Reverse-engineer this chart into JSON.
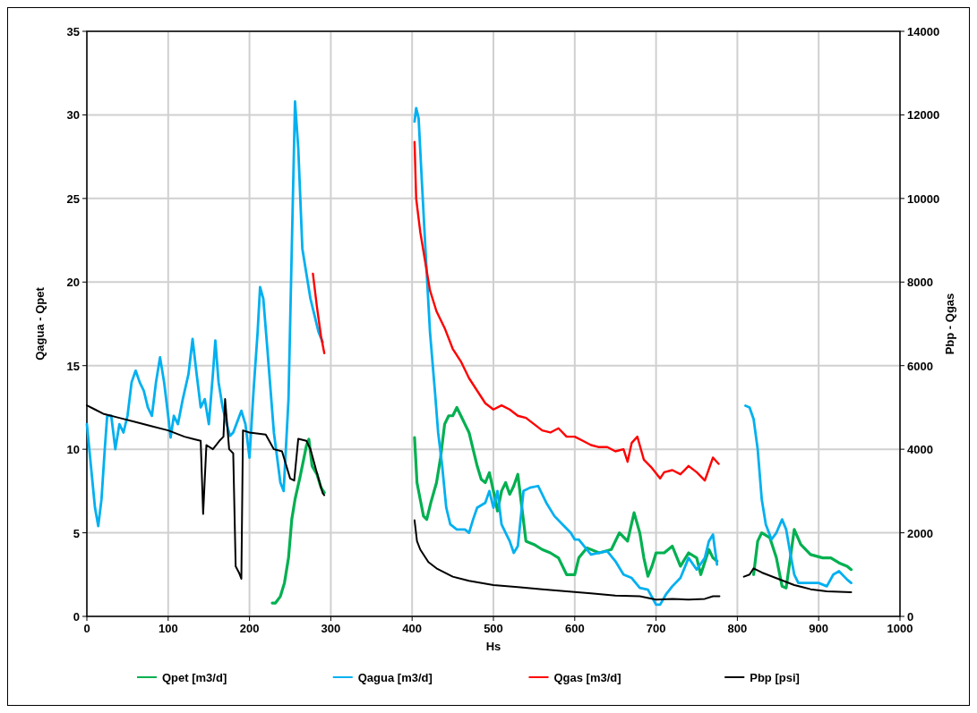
{
  "chart_data": {
    "type": "line",
    "xlabel": "Hs",
    "ylabel": "Qagua - Qpet",
    "y2label": "Pbp - Qgas",
    "xlim": [
      0,
      1000
    ],
    "xticks": [
      0,
      100,
      200,
      300,
      400,
      500,
      600,
      700,
      800,
      900,
      1000
    ],
    "ylim": [
      0,
      35
    ],
    "yticks": [
      0,
      5,
      10,
      15,
      20,
      25,
      30,
      35
    ],
    "y2lim": [
      0,
      14000
    ],
    "y2ticks": [
      0,
      2000,
      4000,
      6000,
      8000,
      10000,
      12000,
      14000
    ],
    "grid": true,
    "legend": "bottom",
    "line_style": "solid",
    "series": [
      {
        "name": "Qpet [m3/d]",
        "color": "#00b050",
        "x": [
          228,
          232,
          238,
          243,
          248,
          252,
          256,
          262,
          270,
          273,
          277,
          283,
          288,
          292,
          300,
          403,
          406,
          410,
          414,
          418,
          423,
          430,
          435,
          440,
          445,
          450,
          455,
          460,
          465,
          470,
          475,
          480,
          485,
          490,
          495,
          500,
          505,
          510,
          515,
          520,
          525,
          530,
          535,
          540,
          550,
          560,
          570,
          580,
          590,
          600,
          605,
          615,
          630,
          645,
          655,
          665,
          673,
          680,
          685,
          690,
          695,
          700,
          710,
          720,
          730,
          740,
          750,
          755,
          765,
          770,
          775,
          790,
          820,
          825,
          830,
          840,
          848,
          855,
          860,
          870,
          878,
          890,
          905,
          915,
          925,
          935,
          940
        ],
        "values": [
          0.8,
          0.8,
          1.2,
          2,
          3.5,
          5.8,
          7,
          8.3,
          10.2,
          10.6,
          9,
          8.5,
          7.7,
          7.4,
          null,
          10.7,
          8,
          7,
          6,
          5.8,
          6.8,
          8,
          9.5,
          11.5,
          12,
          12,
          12.5,
          12,
          11.5,
          11,
          10,
          9,
          8.2,
          8,
          8.6,
          7.5,
          6.3,
          7.5,
          8,
          7.3,
          7.8,
          8.5,
          6.5,
          4.5,
          4.3,
          4,
          3.8,
          3.5,
          2.5,
          2.5,
          3.5,
          4.1,
          3.8,
          4,
          5,
          4.5,
          6.2,
          5,
          3.5,
          2.4,
          3,
          3.8,
          3.8,
          4.2,
          3,
          3.8,
          3.5,
          2.5,
          4,
          3.5,
          3.3,
          null,
          2.5,
          4.5,
          5,
          4.7,
          3.5,
          1.8,
          1.7,
          5.2,
          4.3,
          3.7,
          3.5,
          3.5,
          3.2,
          3,
          2.8
        ]
      },
      {
        "name": "Qagua [m3/d]",
        "color": "#00b0f0",
        "x": [
          0,
          5,
          10,
          14,
          18,
          22,
          25,
          30,
          35,
          40,
          45,
          50,
          55,
          60,
          65,
          70,
          75,
          80,
          85,
          90,
          95,
          100,
          103,
          107,
          112,
          118,
          125,
          130,
          135,
          140,
          145,
          150,
          155,
          158,
          162,
          167,
          172,
          176,
          180,
          190,
          195,
          200,
          205,
          210,
          213,
          217,
          222,
          230,
          238,
          242,
          248,
          252,
          256,
          260,
          265,
          270,
          275,
          280,
          285,
          290,
          300,
          403,
          405,
          408,
          412,
          418,
          422,
          428,
          432,
          437,
          442,
          447,
          455,
          465,
          470,
          475,
          480,
          490,
          495,
          500,
          505,
          510,
          515,
          520,
          525,
          530,
          537,
          545,
          555,
          565,
          575,
          585,
          595,
          600,
          605,
          615,
          620,
          630,
          640,
          650,
          660,
          670,
          680,
          690,
          700,
          705,
          712,
          720,
          730,
          740,
          750,
          760,
          765,
          770,
          775,
          790,
          810,
          815,
          820,
          825,
          830,
          835,
          842,
          848,
          855,
          860,
          865,
          870,
          875,
          885,
          900,
          910,
          918,
          925,
          935,
          940
        ],
        "values": [
          11.5,
          9,
          6.5,
          5.4,
          7,
          10,
          12,
          12,
          10,
          11.5,
          11,
          12,
          14,
          14.7,
          14,
          13.5,
          12.5,
          12,
          14,
          15.5,
          14,
          12,
          10.7,
          12,
          11.5,
          13,
          14.5,
          16.6,
          14.5,
          12.5,
          13,
          11.5,
          14.5,
          16.5,
          14,
          12.5,
          11.5,
          10.8,
          11,
          12.3,
          11.5,
          9.5,
          13.5,
          17,
          19.7,
          19,
          16,
          11,
          8,
          7.5,
          13,
          22,
          30.8,
          28,
          22,
          20.5,
          19,
          18,
          17,
          16.4,
          null,
          29.6,
          30.4,
          29.8,
          26,
          20.5,
          17,
          13.5,
          11,
          9,
          6.5,
          5.5,
          5.2,
          5.2,
          5,
          5.8,
          6.5,
          6.8,
          7.5,
          6.5,
          7.5,
          5.5,
          5,
          4.5,
          3.8,
          4.2,
          7.5,
          7.7,
          7.8,
          6.8,
          6,
          5.5,
          5,
          4.6,
          4.6,
          4,
          3.7,
          3.8,
          3.9,
          3.3,
          2.5,
          2.3,
          1.7,
          1.6,
          0.7,
          0.7,
          1.3,
          1.8,
          2.3,
          3.5,
          2.8,
          3.5,
          4.5,
          4.9,
          3.1,
          null,
          12.6,
          12.5,
          11.8,
          10,
          7,
          5.5,
          4.6,
          5,
          5.8,
          5.2,
          3.8,
          2.5,
          2,
          2,
          2,
          1.8,
          2.5,
          2.7,
          2.2,
          2
        ]
      },
      {
        "name": "Qgas [m3/d]",
        "color": "#ff0000",
        "axis": "y2",
        "x": [
          278,
          283,
          288,
          292,
          300,
          403,
          405,
          410,
          416,
          422,
          430,
          440,
          450,
          460,
          470,
          480,
          490,
          500,
          510,
          520,
          530,
          540,
          550,
          560,
          570,
          580,
          590,
          600,
          610,
          620,
          630,
          640,
          650,
          660,
          665,
          670,
          677,
          685,
          695,
          705,
          710,
          720,
          730,
          740,
          750,
          760,
          770,
          777
        ],
        "values": [
          8200,
          7400,
          6700,
          6300,
          null,
          11350,
          10000,
          9200,
          8500,
          7800,
          7300,
          6900,
          6400,
          6100,
          5700,
          5400,
          5100,
          4950,
          5050,
          4950,
          4800,
          4750,
          4600,
          4450,
          4400,
          4500,
          4300,
          4300,
          4200,
          4100,
          4050,
          4050,
          3950,
          4000,
          3700,
          4150,
          4300,
          3750,
          3550,
          3300,
          3450,
          3500,
          3400,
          3600,
          3450,
          3250,
          3800,
          3650
        ]
      },
      {
        "name": "Pbp [psi]",
        "color": "#000000",
        "axis": "y2",
        "x": [
          0,
          10,
          20,
          40,
          60,
          80,
          100,
          120,
          130,
          140,
          143,
          147,
          155,
          163,
          168,
          170,
          175,
          180,
          183,
          187,
          190,
          192,
          200,
          220,
          230,
          240,
          250,
          255,
          260,
          270,
          275,
          282,
          290,
          292,
          300,
          403,
          406,
          410,
          420,
          430,
          450,
          470,
          500,
          530,
          560,
          590,
          620,
          650,
          680,
          700,
          720,
          740,
          760,
          770,
          778,
          790,
          808,
          815,
          820,
          830,
          850,
          870,
          880,
          890,
          910,
          940
        ],
        "values": [
          5050,
          4950,
          4850,
          4750,
          4650,
          4550,
          4450,
          4300,
          4250,
          4200,
          2450,
          4100,
          4000,
          4200,
          4300,
          5200,
          4000,
          3900,
          1200,
          1050,
          900,
          4450,
          4400,
          4350,
          4000,
          3950,
          3300,
          3250,
          4250,
          4200,
          4000,
          3500,
          2950,
          2900,
          null,
          2300,
          1800,
          1600,
          1300,
          1150,
          950,
          850,
          750,
          700,
          650,
          600,
          550,
          500,
          480,
          400,
          420,
          400,
          420,
          480,
          480,
          null,
          950,
          1000,
          1150,
          1050,
          900,
          750,
          700,
          650,
          600,
          580
        ]
      }
    ]
  }
}
